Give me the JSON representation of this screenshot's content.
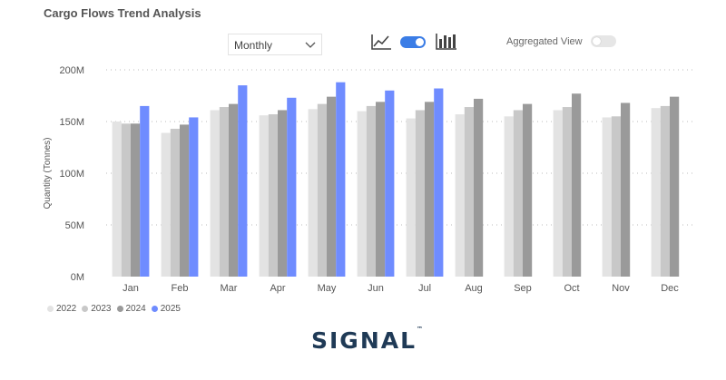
{
  "title": "Cargo Flows Trend Analysis",
  "period_select": {
    "value": "Monthly"
  },
  "icons": {
    "line_chart": "line-chart-icon",
    "bar_chart": "bar-chart-icon",
    "dropdown": "chevron-down-icon"
  },
  "chart_toggle": {
    "state": "on"
  },
  "aggregated_view": {
    "label": "Aggregated View",
    "state": "off"
  },
  "colors": {
    "2022": "#e3e3e3",
    "2023": "#c8c8c8",
    "2024": "#9a9a9a",
    "2025": "#6f8cff",
    "toggle_on": "#3b7de6"
  },
  "brand": {
    "name": "SIGNAL",
    "tm": "™"
  },
  "chart_data": {
    "type": "bar",
    "title": "",
    "xlabel": "",
    "ylabel": "Quantity (Tonnes)",
    "ylim": [
      0,
      200
    ],
    "yticks": [
      0,
      50,
      100,
      150,
      200
    ],
    "ytick_labels": [
      "0M",
      "50M",
      "100M",
      "150M",
      "200M"
    ],
    "grid": true,
    "legend_position": "bottom-left",
    "categories": [
      "Jan",
      "Feb",
      "Mar",
      "Apr",
      "May",
      "Jun",
      "Jul",
      "Aug",
      "Sep",
      "Oct",
      "Nov",
      "Dec"
    ],
    "series": [
      {
        "name": "2022",
        "values": [
          150,
          139,
          161,
          156,
          162,
          160,
          153,
          157,
          155,
          161,
          154,
          163
        ]
      },
      {
        "name": "2023",
        "values": [
          148,
          143,
          164,
          157,
          167,
          165,
          161,
          164,
          161,
          164,
          155,
          165
        ]
      },
      {
        "name": "2024",
        "values": [
          148,
          147,
          167,
          161,
          174,
          169,
          169,
          172,
          167,
          177,
          168,
          174
        ]
      },
      {
        "name": "2025",
        "values": [
          165,
          154,
          185,
          173,
          188,
          180,
          182,
          null,
          null,
          null,
          null,
          null
        ]
      }
    ]
  }
}
